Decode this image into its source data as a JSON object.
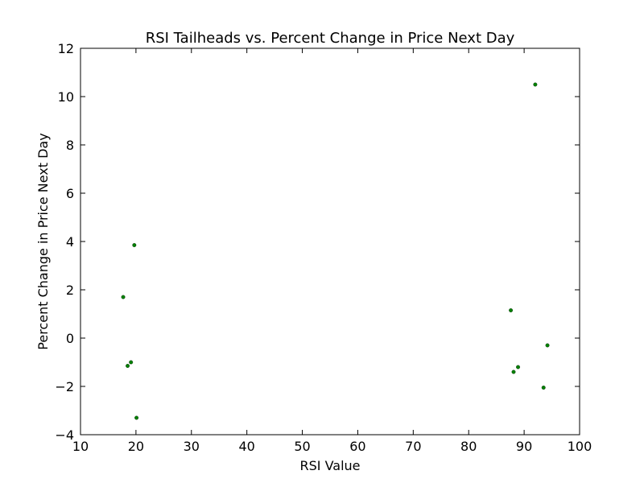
{
  "chart_data": {
    "type": "scatter",
    "title": "RSI Tailheads vs. Percent Change in Price Next Day",
    "xlabel": "RSI Value",
    "ylabel": "Percent Change in Price Next Day",
    "xlim": [
      10,
      100
    ],
    "ylim": [
      -4,
      12
    ],
    "xticks": [
      10,
      20,
      30,
      40,
      50,
      60,
      70,
      80,
      90,
      100
    ],
    "yticks": [
      -4,
      -2,
      0,
      2,
      4,
      6,
      8,
      10,
      12
    ],
    "grid": false,
    "marker_color": "#008000",
    "series": [
      {
        "points": [
          {
            "x": 17.7,
            "y": 1.7
          },
          {
            "x": 19.7,
            "y": 3.85
          },
          {
            "x": 19.1,
            "y": -1.0
          },
          {
            "x": 18.5,
            "y": -1.15
          },
          {
            "x": 20.1,
            "y": -3.3
          },
          {
            "x": 87.6,
            "y": 1.15
          },
          {
            "x": 88.1,
            "y": -1.4
          },
          {
            "x": 88.9,
            "y": -1.2
          },
          {
            "x": 92.0,
            "y": 10.5
          },
          {
            "x": 93.5,
            "y": -2.05
          },
          {
            "x": 94.2,
            "y": -0.3
          }
        ]
      }
    ]
  }
}
